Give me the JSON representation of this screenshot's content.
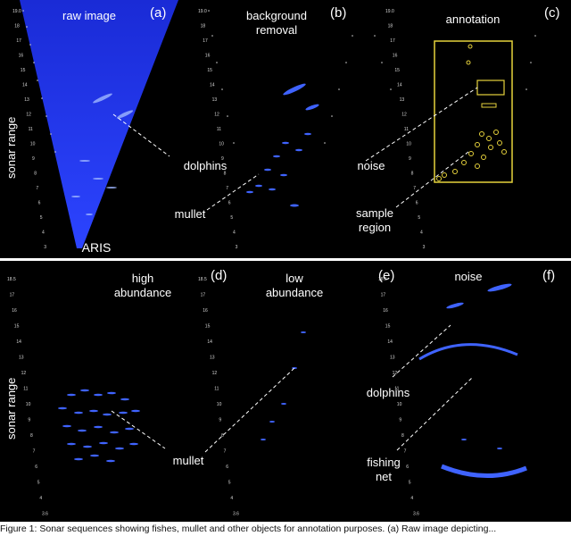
{
  "panels": {
    "a": {
      "tag": "(a)",
      "title": "raw image",
      "labels": {
        "dolphins": "dolphins",
        "aris": "ARIS"
      }
    },
    "b": {
      "tag": "(b)",
      "title_line1": "background",
      "title_line2": "removal",
      "labels": {
        "mullet": "mullet"
      }
    },
    "c": {
      "tag": "(c)",
      "title": "annotation",
      "labels": {
        "noise": "noise",
        "sample_line1": "sample",
        "sample_line2": "region"
      }
    },
    "d": {
      "tag": "(d)",
      "title_line1": "high",
      "title_line2": "abundance"
    },
    "e": {
      "tag": "(e)",
      "title_line1": "low",
      "title_line2": "abundance",
      "labels": {
        "mullet": "mullet"
      }
    },
    "f": {
      "tag": "(f)",
      "title": "noise",
      "labels": {
        "dolphins": "dolphins",
        "fishing_line1": "fishing",
        "fishing_line2": "net"
      }
    }
  },
  "axis": {
    "sonar_range": "sonar range"
  },
  "range_ticks": [
    "19.0",
    "18",
    "17",
    "16",
    "15",
    "14",
    "13",
    "12",
    "11",
    "10",
    "9",
    "8",
    "7",
    "6",
    "5",
    "4",
    "3"
  ],
  "range_ticks_row2": [
    "18.5",
    "17",
    "16",
    "15",
    "14",
    "13",
    "12",
    "11",
    "10",
    "9",
    "8",
    "7",
    "6",
    "5",
    "4",
    "3.6"
  ],
  "colors": {
    "sonar_blue": "#2a3cff",
    "annotation_yellow": "#e6d23c",
    "background": "#000000",
    "text": "#ffffff"
  },
  "caption": "Figure 1: Sonar sequences showing fishes, mullet and other objects for annotation purposes. (a) Raw image depicting..."
}
